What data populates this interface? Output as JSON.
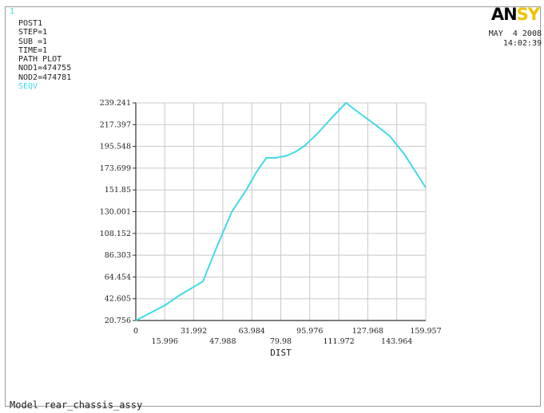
{
  "window_number": "1",
  "info_lines": [
    "POST1",
    "STEP=1",
    "SUB =1",
    "TIME=1",
    "PATH PLOT",
    "NOD1=474755",
    "NOD2=474781"
  ],
  "series_label": "SEQV",
  "logo": {
    "dark": "AN",
    "accent": "SY"
  },
  "date": "MAY  4 2008",
  "time": "14:02:39",
  "footer": "Model rear_chassis_assy",
  "colors": {
    "series": "#41d9e8",
    "grid": "#c8c8c8",
    "axis": "#333333",
    "accent": "#f0c200"
  },
  "chart_data": {
    "type": "line",
    "title": "",
    "xlabel": "DIST",
    "ylabel": "",
    "grid": true,
    "xlim": [
      0,
      159.957
    ],
    "ylim": [
      20.756,
      239.241
    ],
    "x_ticks": [
      "0",
      "15.996",
      "31.992",
      "47.988",
      "63.984",
      "79.98",
      "95.976",
      "111.972",
      "127.968",
      "143.964",
      "159.957"
    ],
    "y_ticks": [
      "20.756",
      "42.605",
      "64.454",
      "86.303",
      "108.152",
      "130.001",
      "151.85",
      "173.699",
      "195.548",
      "217.397",
      "239.241"
    ],
    "series": [
      {
        "name": "SEQV",
        "x": [
          0,
          16.0,
          24.0,
          37.0,
          45.0,
          53.0,
          61.0,
          67.0,
          72.0,
          77.0,
          83.0,
          88.0,
          93.0,
          100.0,
          108.0,
          116.0,
          124.0,
          132.0,
          140.0,
          148.0,
          159.957
        ],
        "y": [
          20.756,
          36.0,
          46.0,
          60.0,
          96.0,
          130.0,
          152.0,
          171.0,
          184.0,
          184.0,
          186.0,
          190.0,
          196.0,
          208.0,
          224.0,
          239.241,
          228.0,
          217.5,
          206.0,
          188.0,
          154.0
        ]
      }
    ]
  }
}
